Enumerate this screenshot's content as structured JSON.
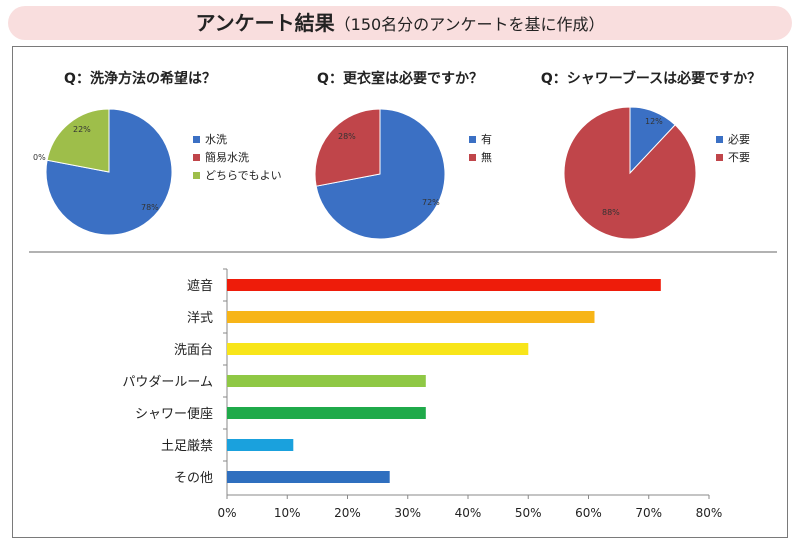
{
  "header": {
    "title_main": "アンケート結果",
    "title_sub": "（150名分のアンケートを基に作成）"
  },
  "colors": {
    "blue": "#3b70c4",
    "red": "#c0454a",
    "green": "#9ebe4a",
    "header_bg": "#f9dede"
  },
  "chart_data": [
    {
      "type": "pie",
      "title": "Q：洗浄方法の希望は？",
      "labels": [
        "水洗",
        "簡易水洗",
        "どちらでもよい"
      ],
      "values": [
        78,
        0,
        22
      ],
      "value_labels": [
        "78%",
        "0%",
        "22%"
      ],
      "colors": [
        "#3b70c4",
        "#c0454a",
        "#9ebe4a"
      ],
      "legend": "right"
    },
    {
      "type": "pie",
      "title": "Q：更衣室は必要ですか？",
      "labels": [
        "有",
        "無"
      ],
      "values": [
        72,
        28
      ],
      "value_labels": [
        "72%",
        "28%"
      ],
      "colors": [
        "#3b70c4",
        "#c0454a"
      ],
      "legend": "right"
    },
    {
      "type": "pie",
      "title": "Q：シャワーブースは必要ですか？",
      "labels": [
        "必要",
        "不要"
      ],
      "values": [
        12,
        88
      ],
      "value_labels": [
        "12%",
        "88%"
      ],
      "colors": [
        "#3b70c4",
        "#c0454a"
      ],
      "legend": "right"
    },
    {
      "type": "bar",
      "orientation": "horizontal",
      "categories": [
        "遮音",
        "洋式",
        "洗面台",
        "パウダールーム",
        "シャワー便座",
        "土足厳禁",
        "その他"
      ],
      "values": [
        72,
        61,
        50,
        33,
        33,
        11,
        27
      ],
      "colors": [
        "#ee1c0a",
        "#f7b518",
        "#f8e51a",
        "#8fc845",
        "#1faa4a",
        "#1aa1dd",
        "#2f6fbf"
      ],
      "xlim": [
        0,
        80
      ],
      "xticks": [
        "0%",
        "10%",
        "20%",
        "30%",
        "40%",
        "50%",
        "60%",
        "70%",
        "80%"
      ],
      "grid": false
    }
  ]
}
